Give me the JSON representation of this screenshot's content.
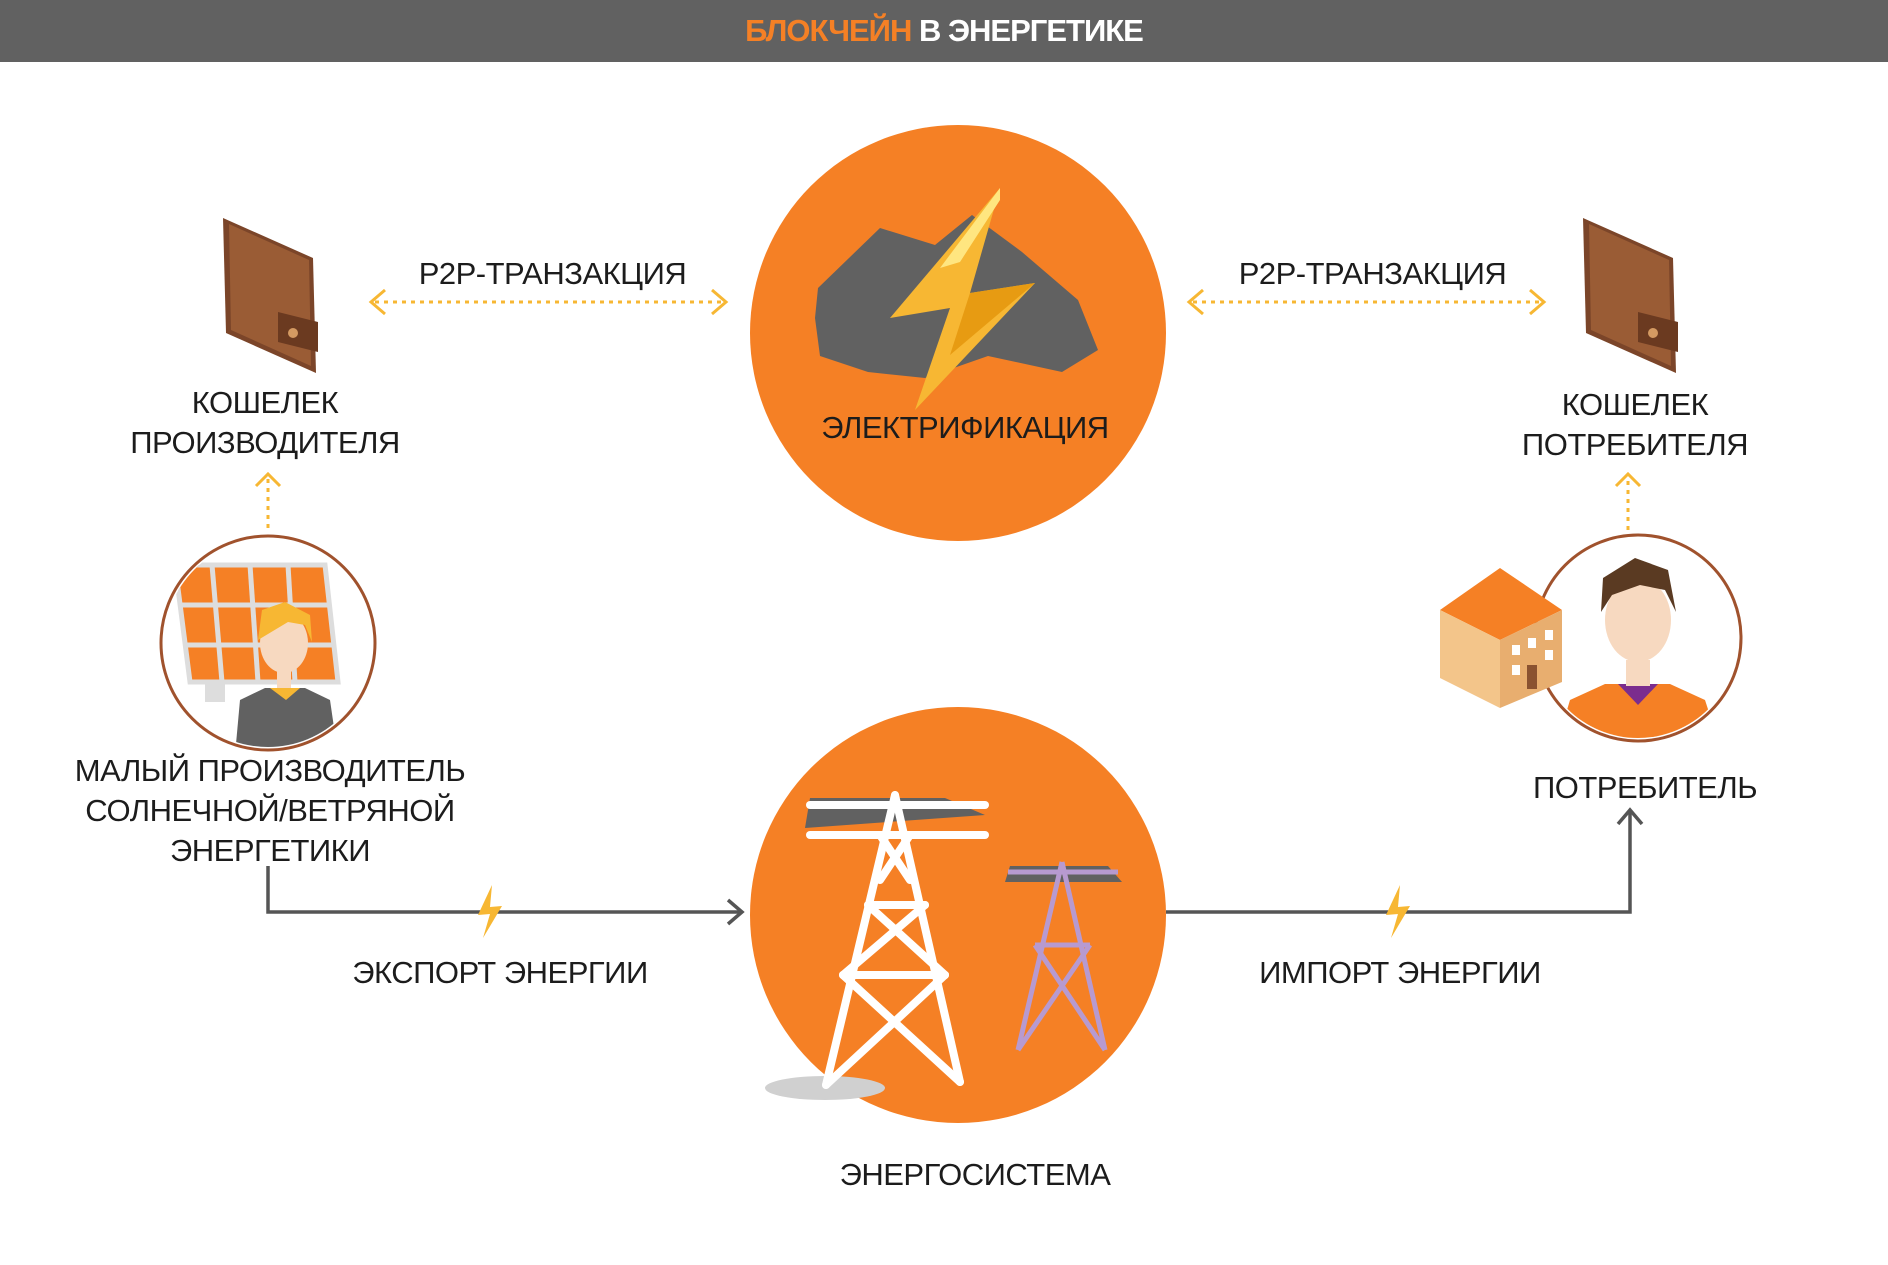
{
  "header": {
    "title_accent": "БЛОКЧЕЙН",
    "title_rest": "В ЭНЕРГЕТИКЕ"
  },
  "nodes": {
    "electrification": "ЭЛЕКТРИФИКАЦИЯ",
    "producer_wallet": [
      "КОШЕЛЕК",
      "ПРОИЗВОДИТЕЛЯ"
    ],
    "consumer_wallet": [
      "КОШЕЛЕК",
      "ПОТРЕБИТЕЛЯ"
    ],
    "producer": [
      "МАЛЫЙ ПРОИЗВОДИТЕЛЬ",
      "СОЛНЕЧНОЙ/ВЕТРЯНОЙ",
      "ЭНЕРГЕТИКИ"
    ],
    "consumer": "ПОТРЕБИТЕЛЬ",
    "grid": "ЭНЕРГОСИСТЕМА"
  },
  "edges": {
    "p2p_left": "P2P-ТРАНЗАКЦИЯ",
    "p2p_right": "P2P-ТРАНЗАКЦИЯ",
    "export": "ЭКСПОРТ ЭНЕРГИИ",
    "import": "ИМПОРТ ЭНЕРГИИ"
  },
  "icons": [
    "wallet-icon",
    "lightning-cloud-icon",
    "solar-panel-producer-icon",
    "house-icon",
    "consumer-person-icon",
    "power-tower-icon",
    "lightning-bolt-icon"
  ],
  "colors": {
    "accent": "#F58025",
    "banner": "#616161",
    "dotted_arrow": "#F7B733",
    "solid_arrow": "#555555",
    "wallet": "#8A5230"
  }
}
